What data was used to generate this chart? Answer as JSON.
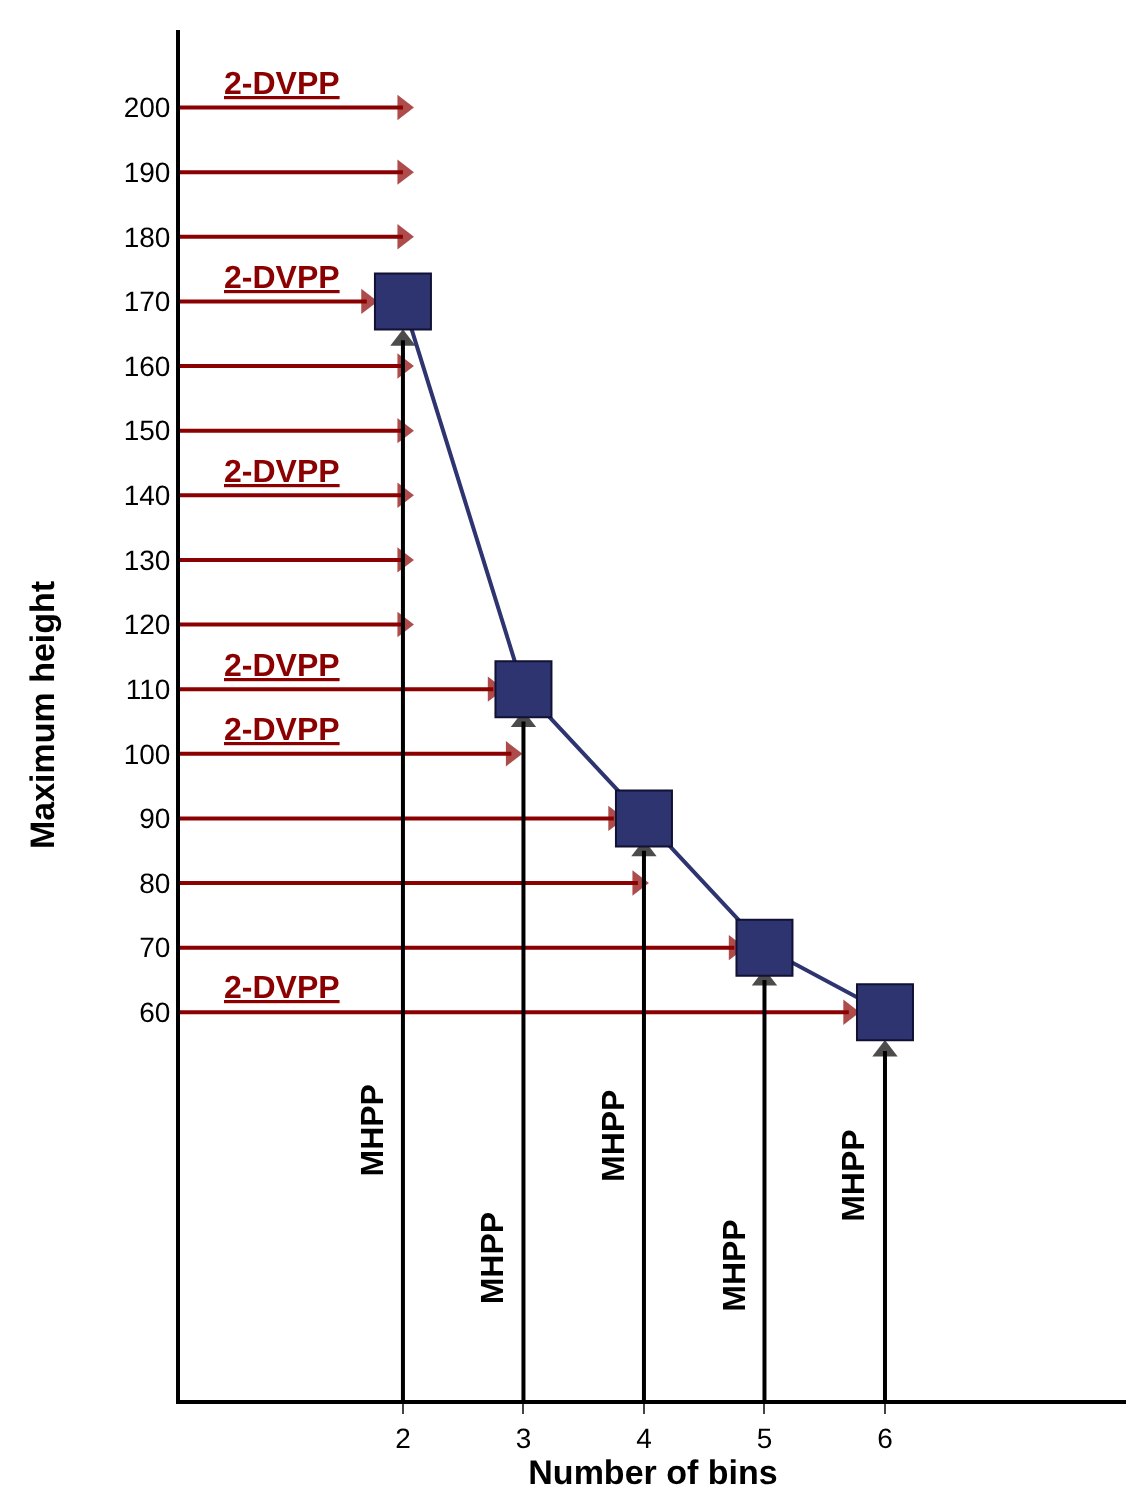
{
  "chart_data": {
    "type": "line",
    "xlabel": "Number of bins",
    "ylabel": "Maximum height",
    "xlim": [
      0.15,
      8
    ],
    "xticks": [
      2,
      3,
      4,
      5,
      6
    ],
    "ylim": [
      0,
      212
    ],
    "yticks": [
      60,
      70,
      80,
      90,
      100,
      110,
      120,
      130,
      140,
      150,
      160,
      170,
      180,
      190,
      200
    ],
    "grid": false,
    "legend": false,
    "series": [
      {
        "x": [
          0.15,
          2
        ],
        "values": [
          200,
          200
        ],
        "color": "#8b0000",
        "marker": "triangle"
      },
      {
        "x": [
          0.15,
          2
        ],
        "values": [
          190,
          190
        ],
        "color": "#8b0000",
        "marker": "triangle"
      },
      {
        "x": [
          0.15,
          2
        ],
        "values": [
          180,
          180
        ],
        "color": "#8b0000",
        "marker": "triangle"
      },
      {
        "x": [
          0.15,
          1.7
        ],
        "values": [
          170,
          170
        ],
        "color": "#8b0000",
        "marker": "triangle"
      },
      {
        "x": [
          0.15,
          2
        ],
        "values": [
          160,
          160
        ],
        "color": "#8b0000",
        "marker": "triangle"
      },
      {
        "x": [
          0.15,
          2
        ],
        "values": [
          150,
          150
        ],
        "color": "#8b0000",
        "marker": "triangle"
      },
      {
        "x": [
          0.15,
          2
        ],
        "values": [
          140,
          140
        ],
        "color": "#8b0000",
        "marker": "triangle"
      },
      {
        "x": [
          0.15,
          2
        ],
        "values": [
          130,
          130
        ],
        "color": "#8b0000",
        "marker": "triangle"
      },
      {
        "x": [
          0.15,
          2
        ],
        "values": [
          120,
          120
        ],
        "color": "#8b0000",
        "marker": "triangle"
      },
      {
        "x": [
          0.15,
          2.75
        ],
        "values": [
          110,
          110
        ],
        "color": "#8b0000",
        "marker": "triangle"
      },
      {
        "x": [
          0.15,
          2.9
        ],
        "values": [
          100,
          100
        ],
        "color": "#8b0000",
        "marker": "triangle"
      },
      {
        "x": [
          0.15,
          3.75
        ],
        "values": [
          90,
          90
        ],
        "color": "#8b0000",
        "marker": "triangle"
      },
      {
        "x": [
          0.15,
          3.95
        ],
        "values": [
          80,
          80
        ],
        "color": "#8b0000",
        "marker": "triangle"
      },
      {
        "x": [
          0.15,
          4.75
        ],
        "values": [
          70,
          70
        ],
        "color": "#8b0000",
        "marker": "triangle"
      },
      {
        "x": [
          0.15,
          5.7
        ],
        "values": [
          60,
          60
        ],
        "color": "#8b0000",
        "marker": "triangle"
      },
      {
        "x": [
          2,
          2
        ],
        "values": [
          0,
          164
        ],
        "color": "#000000",
        "marker": "triangle"
      },
      {
        "x": [
          3,
          3
        ],
        "values": [
          0,
          105
        ],
        "color": "#000000",
        "marker": "triangle"
      },
      {
        "x": [
          4,
          4
        ],
        "values": [
          0,
          85
        ],
        "color": "#000000",
        "marker": "triangle"
      },
      {
        "x": [
          5,
          5
        ],
        "values": [
          0,
          65
        ],
        "color": "#000000",
        "marker": "triangle"
      },
      {
        "x": [
          6,
          6
        ],
        "values": [
          0,
          54
        ],
        "color": "#000000",
        "marker": "triangle"
      },
      {
        "x": [
          2,
          3,
          4,
          5,
          6
        ],
        "values": [
          170,
          110,
          90,
          70,
          60
        ],
        "color": "#2e3470",
        "marker": "square"
      }
    ],
    "annotations": [
      {
        "text": "2-DVPP",
        "x": 1.0,
        "y": 200
      },
      {
        "text": "2-DVPP",
        "x": 1.0,
        "y": 170
      },
      {
        "text": "2-DVPP",
        "x": 1.0,
        "y": 140
      },
      {
        "text": "2-DVPP",
        "x": 1.0,
        "y": 110
      },
      {
        "text": "2-DVPP",
        "x": 1.0,
        "y": 100
      },
      {
        "text": "2-DVPP",
        "x": 1.0,
        "y": 60
      },
      {
        "text": "MHPP",
        "x": 2,
        "y": 42
      },
      {
        "text": "MHPP",
        "x": 3,
        "y": 22
      },
      {
        "text": "MHPP",
        "x": 4,
        "y": 41
      },
      {
        "text": "MHPP",
        "x": 5,
        "y": 21
      },
      {
        "text": "MHPP",
        "x": 6,
        "y": 35
      }
    ]
  }
}
